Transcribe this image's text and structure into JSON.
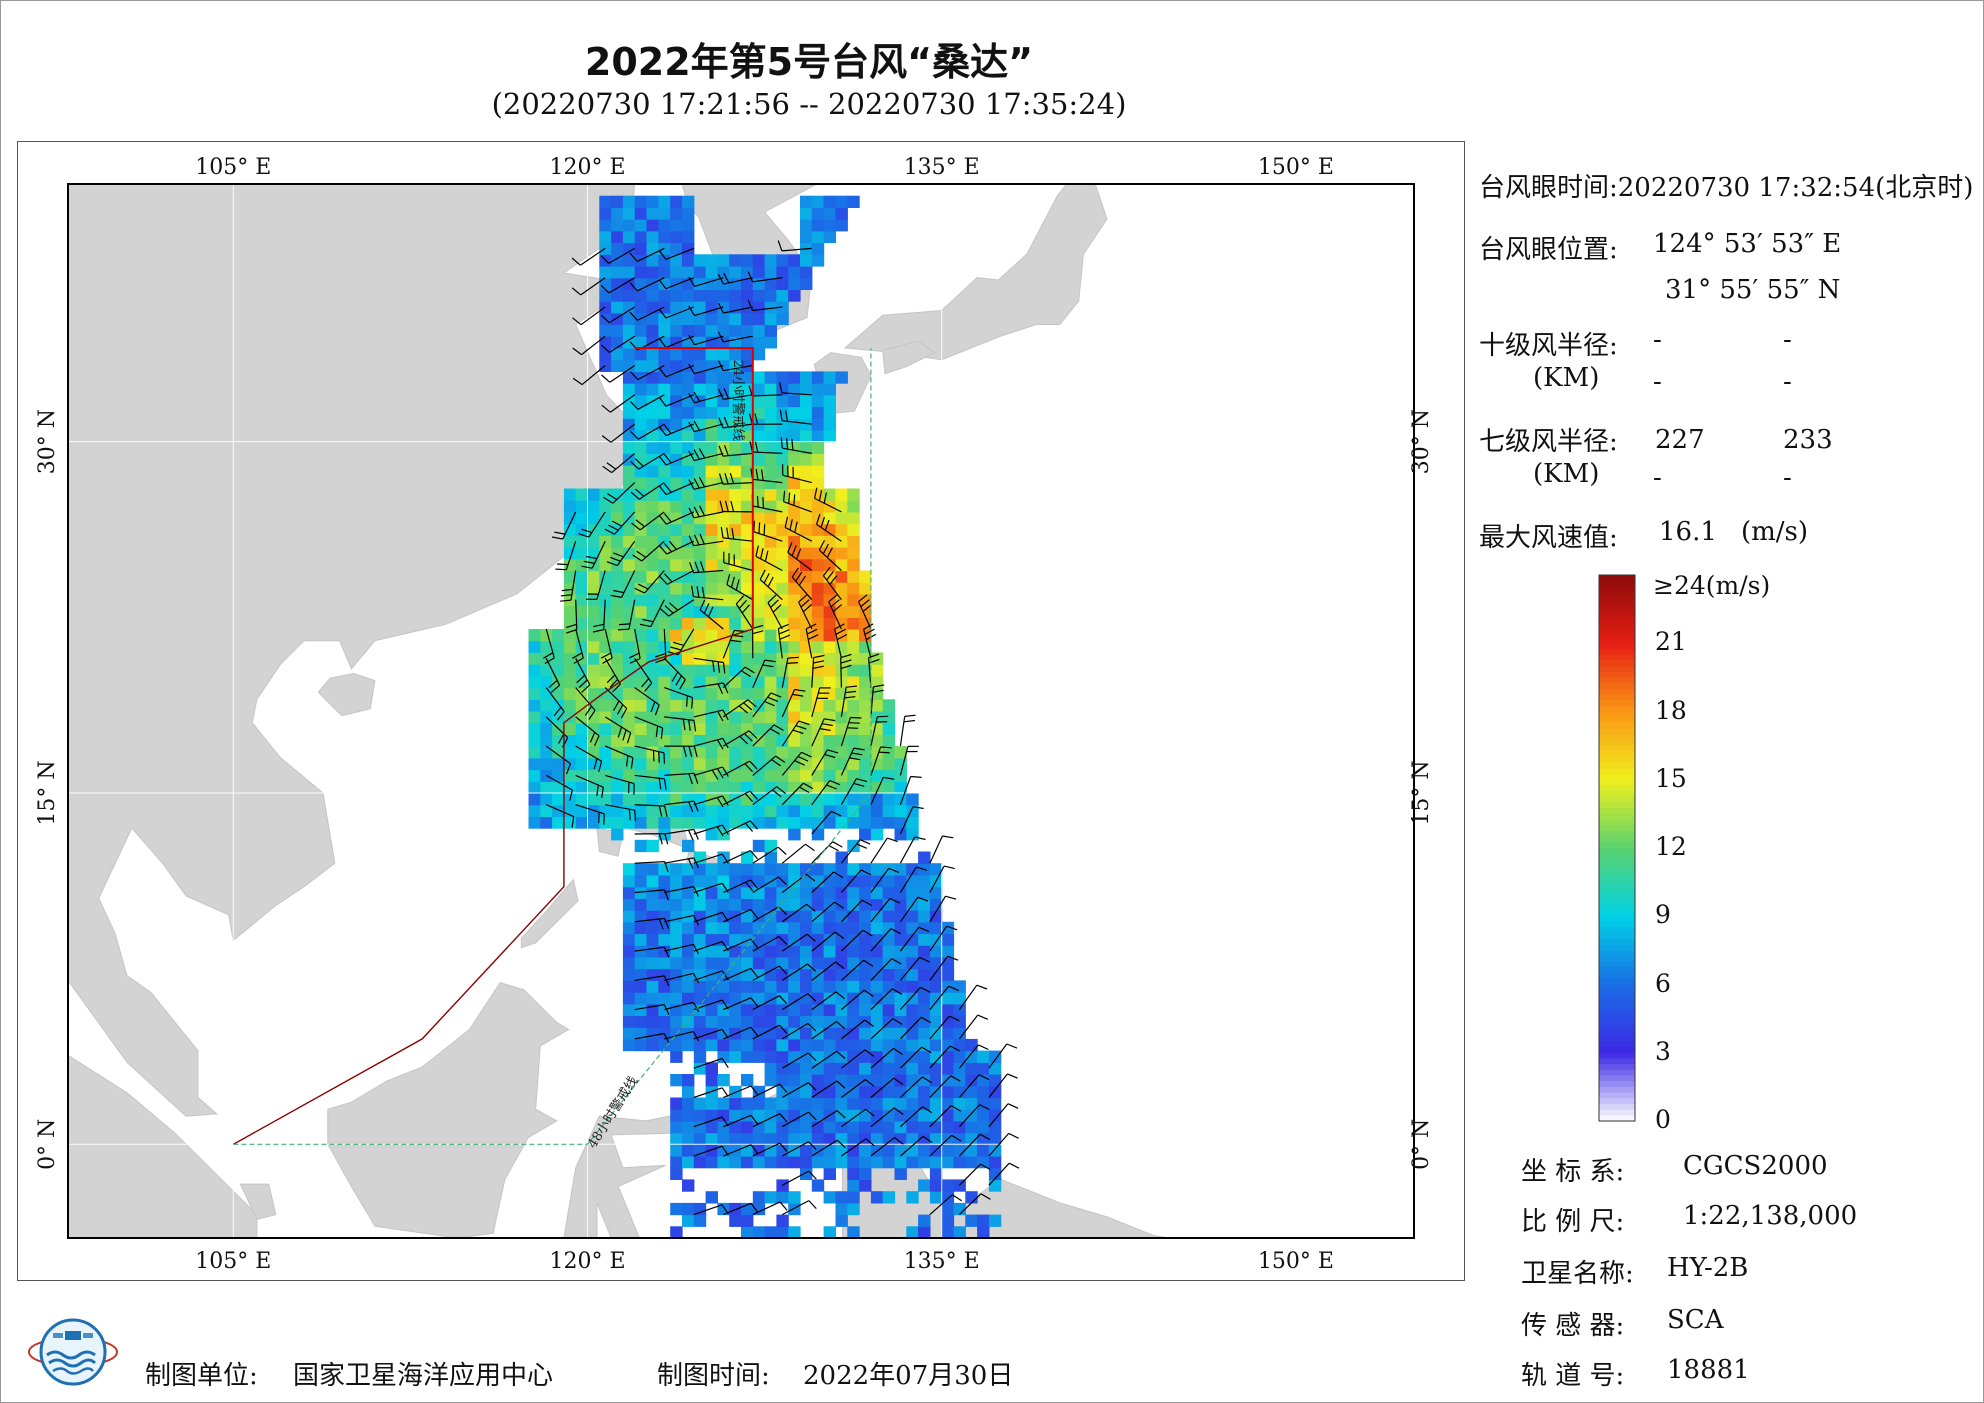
{
  "header": {
    "title": "2022年第5号台风“桑达”",
    "subtitle": "(20220730 17:21:56 -- 20220730 17:35:24)"
  },
  "map": {
    "lon_ticks": [
      "105° E",
      "120° E",
      "135° E",
      "150° E"
    ],
    "lat_ticks": [
      "30° N",
      "15° N",
      "0° N"
    ],
    "lon_range": [
      98,
      155
    ],
    "lat_range": [
      -4,
      41
    ],
    "line_labels": {
      "line_24h": "24小时警戒线",
      "line_48h": "48小时警戒线"
    },
    "colors": {
      "land": "#d3d3d3",
      "sea": "#ffffff",
      "border_line": "#8b0000",
      "warn24": "#e00000",
      "warn48": "#3cb371"
    }
  },
  "info": {
    "eye_time_label": "台风眼时间:",
    "eye_time_value": "20220730 17:32:54(北京时)",
    "eye_pos_label": "台风眼位置:",
    "eye_lon": "124° 53′ 53″ E",
    "eye_lat": "31° 55′ 55″ N",
    "r10_label": "十级风半径:",
    "r10_values": [
      "-",
      "-",
      "-",
      "-"
    ],
    "r7_label": "七级风半径:",
    "r7_values": [
      "227",
      "233",
      "-",
      "-"
    ],
    "km_label": "(KM)",
    "max_wind_label": "最大风速值:",
    "max_wind_value": "16.1",
    "max_wind_unit": "(m/s)"
  },
  "colorbar": {
    "top_label": "≥24(m/s)",
    "ticks": [
      "21",
      "18",
      "15",
      "12",
      "9",
      "6",
      "3",
      "0"
    ],
    "tick_values": [
      21,
      18,
      15,
      12,
      9,
      6,
      3,
      0
    ],
    "max": 24
  },
  "meta": {
    "crs_label": "坐 标 系:",
    "crs_value": "CGCS2000",
    "scale_label": "比 例 尺:",
    "scale_value": "1:22,138,000",
    "satellite_label": "卫星名称:",
    "satellite_value": "HY-2B",
    "sensor_label": "传 感 器:",
    "sensor_value": "SCA",
    "orbit_label": "轨 道 号:",
    "orbit_value": "18881"
  },
  "footer": {
    "unit_label": "制图单位:",
    "unit_value": "国家卫星海洋应用中心",
    "date_label": "制图时间:",
    "date_value": "2022年07月30日"
  },
  "logo": {
    "alt": "国家卫星海洋应用中心 logo"
  }
}
